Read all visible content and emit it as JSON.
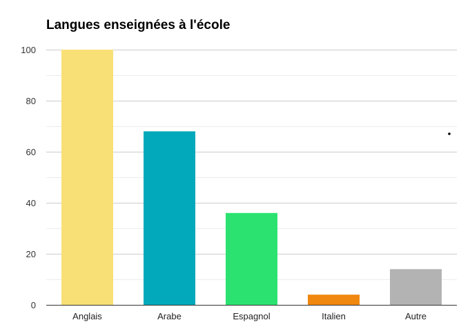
{
  "chart_data": {
    "type": "bar",
    "title": "Langues enseignées à l'école",
    "xlabel": "",
    "ylabel": "",
    "categories": [
      "Anglais",
      "Arabe",
      "Espagnol",
      "Italien",
      "Autre"
    ],
    "values": [
      100,
      68,
      36,
      4,
      14
    ],
    "colors": [
      "#f8e076",
      "#02a9bb",
      "#2be270",
      "#f0870e",
      "#b3b3b3"
    ],
    "ylim": [
      0,
      100
    ],
    "yticks": [
      0,
      20,
      40,
      60,
      80,
      100
    ],
    "grid": true,
    "legend": "none"
  }
}
